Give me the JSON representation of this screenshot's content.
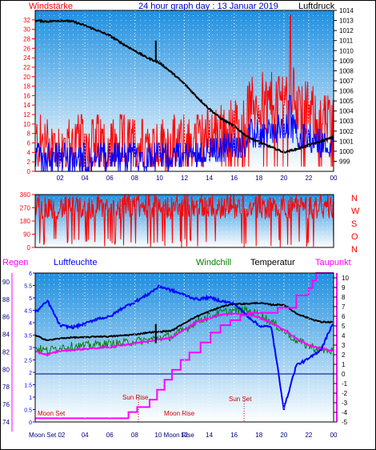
{
  "header": {
    "left_label": "Windstärke",
    "title": "24 hour graph day : 13 Januar 2019",
    "right_label": "Luftdruck"
  },
  "colors": {
    "red": "#ff0000",
    "blue": "#0000ff",
    "green": "#008000",
    "magenta": "#ff00ff",
    "black": "#000000",
    "navy": "#000080",
    "sky_top": "#1f8fe0",
    "sky_bottom": "#ffffff"
  },
  "chart_data": [
    {
      "type": "line",
      "id": "wind_pressure",
      "x_ticks": [
        "02",
        "04",
        "06",
        "08",
        "10",
        "12",
        "14",
        "16",
        "18",
        "20",
        "22",
        "00"
      ],
      "left_axis": {
        "label": "Windstärke",
        "ylim": [
          0,
          34
        ],
        "ticks": [
          0,
          2,
          4,
          6,
          8,
          10,
          12,
          14,
          16,
          18,
          20,
          22,
          24,
          26,
          28,
          30,
          32
        ]
      },
      "right_axis": {
        "label": "Luftdruck",
        "ylim": [
          998,
          1014
        ],
        "ticks": [
          999,
          1000,
          1001,
          1002,
          1003,
          1004,
          1005,
          1006,
          1007,
          1008,
          1009,
          1010,
          1011,
          1012,
          1013,
          1014
        ]
      },
      "series": [
        {
          "name": "Luftdruck",
          "axis": "right",
          "color": "#000000",
          "x": [
            0,
            1,
            2,
            3,
            4,
            5,
            6,
            7,
            8,
            9,
            10,
            11,
            12,
            13,
            14,
            15,
            16,
            17,
            18,
            19,
            20,
            21,
            22,
            23,
            24
          ],
          "y": [
            1013.0,
            1012.9,
            1013.0,
            1012.9,
            1012.5,
            1012.0,
            1011.5,
            1010.7,
            1010.0,
            1009.3,
            1008.8,
            1007.8,
            1006.7,
            1005.4,
            1004.2,
            1003.2,
            1002.5,
            1001.5,
            1000.9,
            1000.4,
            999.9,
            1000.2,
            1000.6,
            1001.0,
            1001.4
          ]
        }
      ]
    },
    {
      "type": "scatter",
      "id": "wind_direction",
      "y_ticks": [
        0,
        90,
        180,
        270,
        360
      ],
      "ylim": [
        0,
        360
      ],
      "direction_labels": [
        "N",
        "W",
        "S",
        "O",
        "N"
      ]
    },
    {
      "type": "line",
      "id": "temperature_humidity",
      "left_labels": {
        "regen": "Regen",
        "luftfeuchte": "Luftfeuchte"
      },
      "top_labels": {
        "windchill": "Windchill",
        "temperatur": "Temperatur",
        "taupunkt": "Taupunkt"
      },
      "regen_axis": {
        "ylim": [
          0,
          6
        ],
        "ticks": [
          "0",
          "0.5",
          "1",
          "1.5",
          "2",
          "2.5",
          "3",
          "3.5",
          "4",
          "4.5",
          "5",
          "5.5",
          "6"
        ]
      },
      "feuchte_axis": {
        "ylim": [
          74,
          91
        ],
        "ticks": [
          74,
          76,
          78,
          80,
          82,
          84,
          86,
          88,
          90
        ]
      },
      "temp_axis": {
        "ylim": [
          -5,
          10.5
        ],
        "ticks": [
          -5,
          -4,
          -3,
          -2,
          -1,
          0,
          1,
          2,
          3,
          4,
          5,
          6,
          7,
          8,
          9,
          10
        ]
      },
      "x_ticks": [
        "02",
        "04",
        "06",
        "08",
        "10",
        "12",
        "14",
        "16",
        "18",
        "20",
        "22",
        "00"
      ],
      "series": [
        {
          "name": "Temperatur",
          "axis": "temp",
          "color": "#000000",
          "x": [
            0,
            1,
            2,
            3,
            4,
            5,
            6,
            7,
            8,
            9,
            10,
            11,
            12,
            13,
            14,
            15,
            16,
            17,
            18,
            19,
            20,
            21,
            22,
            23,
            24
          ],
          "y": [
            4.0,
            3.5,
            3.7,
            3.8,
            3.8,
            3.9,
            3.9,
            4.0,
            4.1,
            4.3,
            4.4,
            4.5,
            5.3,
            6.0,
            6.5,
            7.0,
            7.3,
            7.3,
            7.4,
            7.2,
            7.2,
            6.3,
            5.8,
            5.4,
            5.4
          ]
        },
        {
          "name": "Windchill",
          "axis": "temp",
          "color": "#008000",
          "x": [
            0,
            1,
            2,
            3,
            4,
            5,
            6,
            7,
            8,
            9,
            10,
            11,
            12,
            13,
            14,
            15,
            16,
            17,
            18,
            19,
            20,
            21,
            22,
            23,
            24
          ],
          "y": [
            2.7,
            2.4,
            2.8,
            2.9,
            2.9,
            3.1,
            3.1,
            3.2,
            3.4,
            3.5,
            3.8,
            3.9,
            4.6,
            5.5,
            6.0,
            6.4,
            6.6,
            6.6,
            6.2,
            5.4,
            4.5,
            3.5,
            2.9,
            2.5,
            2.4
          ]
        },
        {
          "name": "Taupunkt",
          "axis": "temp",
          "color": "#ff00ff",
          "x": [
            0,
            1,
            2,
            3,
            4,
            5,
            6,
            7,
            8,
            9,
            10,
            11,
            12,
            13,
            14,
            15,
            16,
            17,
            18,
            19,
            20,
            21,
            22,
            23,
            24
          ],
          "y": [
            2.3,
            2.0,
            2.4,
            2.5,
            2.6,
            2.7,
            2.8,
            3.0,
            3.2,
            3.4,
            3.6,
            3.8,
            4.6,
            5.4,
            5.8,
            6.2,
            6.3,
            6.2,
            5.9,
            5.3,
            4.6,
            3.7,
            3.0,
            2.6,
            2.4
          ]
        },
        {
          "name": "Luftfeuchte",
          "axis": "feuchte",
          "color": "#0000ff",
          "x": [
            0,
            1,
            2,
            3,
            4,
            5,
            6,
            7,
            8,
            9,
            10,
            11,
            12,
            13,
            14,
            15,
            16,
            17,
            18,
            19,
            20,
            21,
            22,
            23,
            24
          ],
          "y": [
            86.5,
            87.8,
            85.0,
            84.8,
            85.2,
            85.8,
            86.0,
            87.0,
            87.7,
            88.5,
            89.5,
            89.0,
            88.5,
            88.0,
            88.2,
            87.8,
            87.5,
            86.2,
            85.0,
            84.8,
            75.5,
            80.5,
            81.2,
            82.3,
            85.5
          ]
        },
        {
          "name": "Regen",
          "axis": "regen",
          "color": "#ff00ff",
          "step": true,
          "x": [
            0,
            7.0,
            7.5,
            8.2,
            9.2,
            9.8,
            10.4,
            11.0,
            11.7,
            12.4,
            13.3,
            14.1,
            14.9,
            15.7,
            16.5,
            17.2,
            19.5,
            21.0,
            22.0,
            22.3,
            22.6,
            24
          ],
          "y": [
            0.15,
            0.15,
            0.4,
            0.6,
            0.9,
            1.3,
            1.7,
            2.1,
            2.5,
            2.8,
            3.2,
            3.6,
            3.9,
            4.1,
            4.3,
            4.4,
            4.6,
            5.1,
            5.4,
            5.7,
            6.0,
            6.0
          ]
        }
      ],
      "reference_line": {
        "axis": "temp",
        "y": 0,
        "color": "#000080"
      },
      "annotations": [
        "Moon Set",
        "Sun Rise",
        "Moon Rise",
        "Sun Set"
      ],
      "bottom_labels": [
        "Moon Set 02",
        "08",
        "10 Moon Rise"
      ]
    }
  ]
}
